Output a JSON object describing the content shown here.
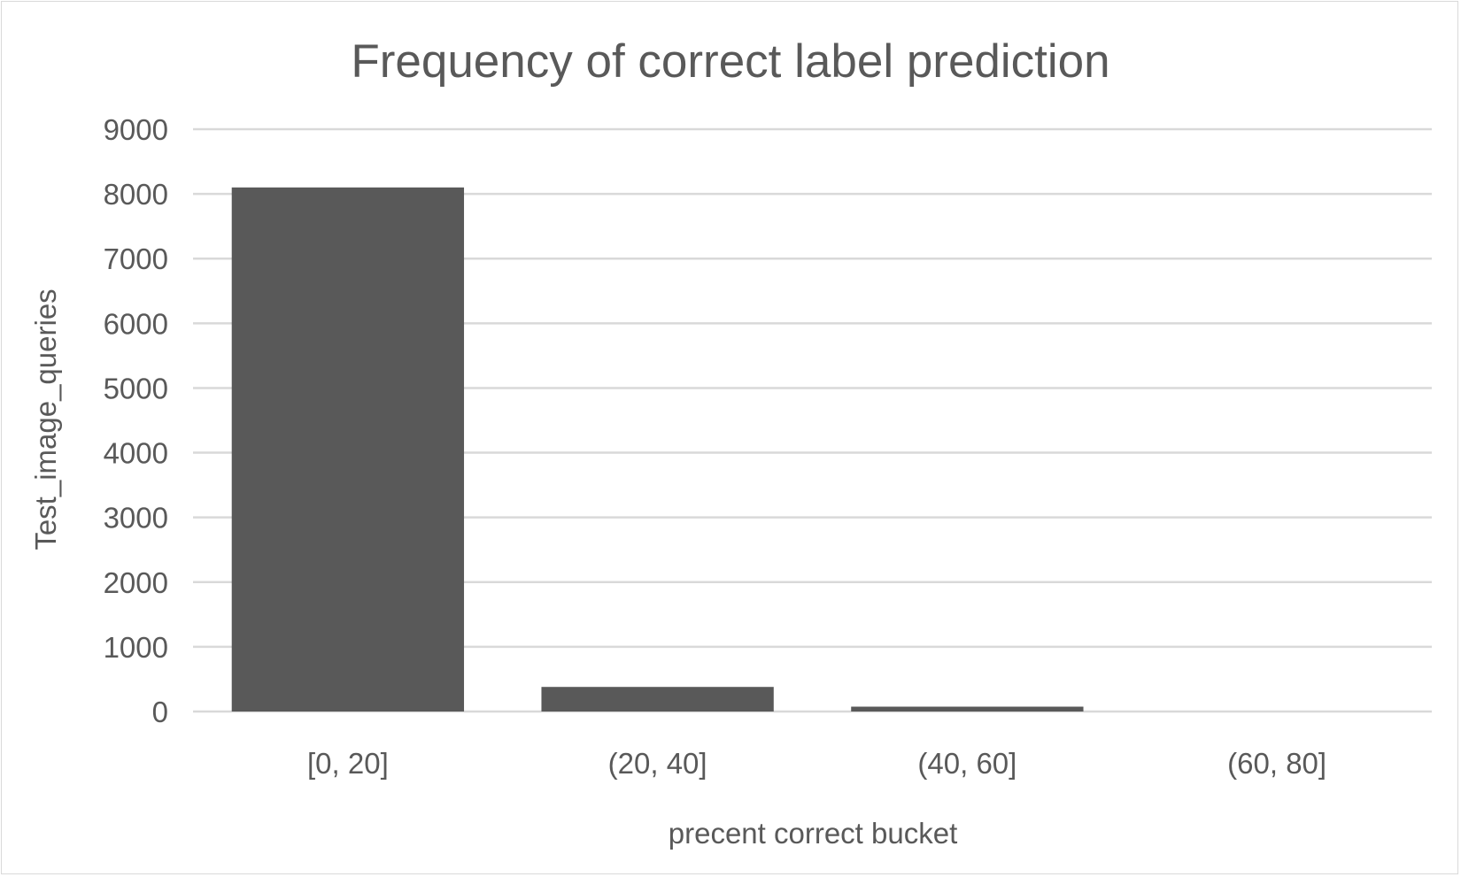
{
  "chart_data": {
    "type": "bar",
    "title": "Frequency of correct label prediction",
    "xlabel": "precent correct bucket",
    "ylabel": "Test_image_queries",
    "categories": [
      "[0, 20]",
      "(20, 40]",
      "(40, 60]",
      "(60, 80]"
    ],
    "values": [
      8100,
      380,
      75,
      0
    ],
    "ylim": [
      0,
      9000
    ],
    "yticks": [
      "0",
      "1000",
      "2000",
      "3000",
      "4000",
      "5000",
      "6000",
      "7000",
      "8000",
      "9000"
    ],
    "grid": true,
    "legend": "none",
    "colors": {
      "bar": "#595959",
      "gridline": "#d9d9d9",
      "text": "#595959",
      "border": "#d9d9d9"
    }
  }
}
